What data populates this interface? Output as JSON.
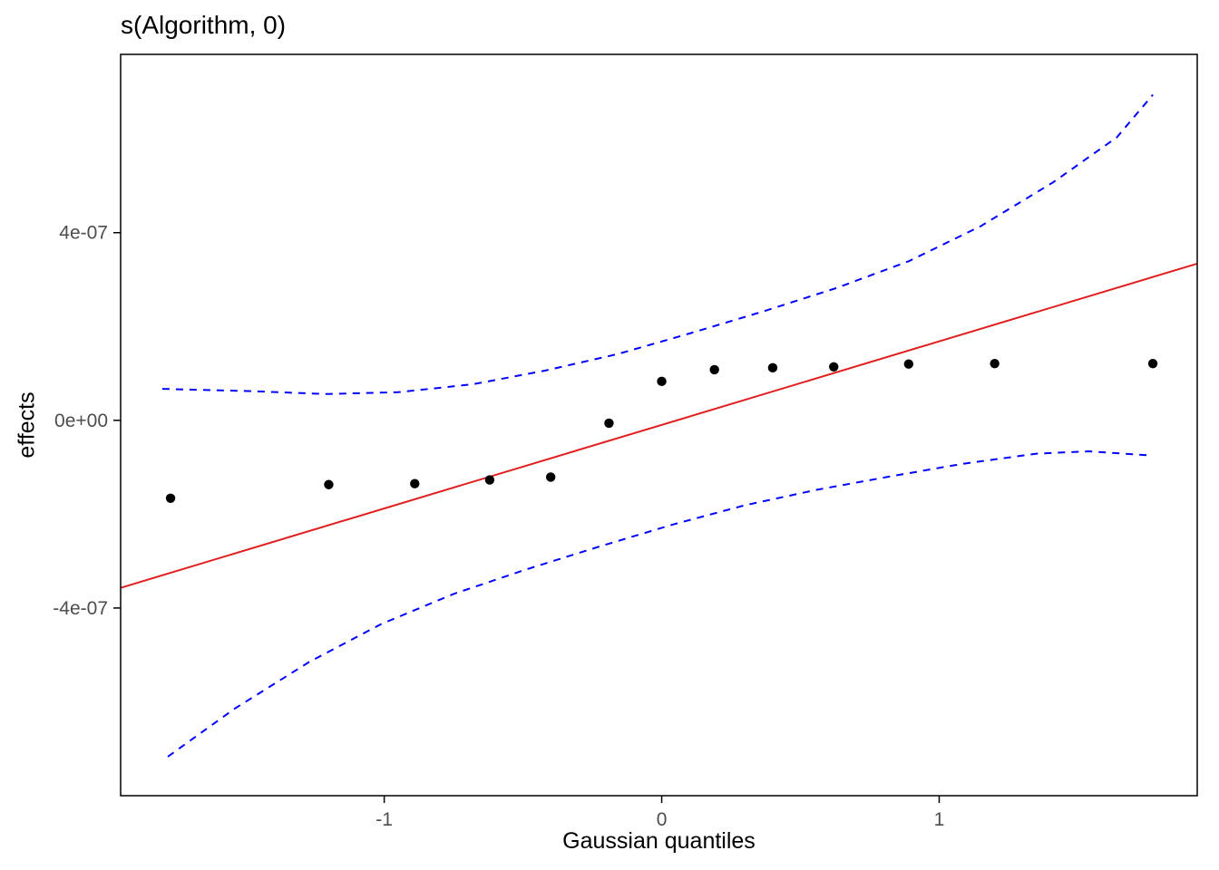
{
  "chart_data": {
    "type": "scatter",
    "title": "s(Algorithm, 0)",
    "xlabel": "Gaussian quantiles",
    "ylabel": "effects",
    "xlim": [
      -1.95,
      1.93
    ],
    "ylim": [
      -8e-07,
      7.8e-07
    ],
    "grid": false,
    "legend": "none",
    "x_ticks": [
      {
        "value": -1,
        "label": "-1"
      },
      {
        "value": 0,
        "label": "0"
      },
      {
        "value": 1,
        "label": "1"
      }
    ],
    "y_ticks": [
      {
        "value": -4e-07,
        "label": "-4e-07"
      },
      {
        "value": 0,
        "label": "0e+00"
      },
      {
        "value": 4e-07,
        "label": "4e-07"
      }
    ],
    "points": {
      "x": [
        -1.77,
        -1.2,
        -0.89,
        -0.62,
        -0.4,
        -0.19,
        0.0,
        0.19,
        0.4,
        0.62,
        0.89,
        1.2,
        1.77
      ],
      "y": [
        -1.66e-07,
        -1.37e-07,
        -1.35e-07,
        -1.27e-07,
        -1.21e-07,
        -6e-09,
        8.3e-08,
        1.08e-07,
        1.12e-07,
        1.14e-07,
        1.2e-07,
        1.21e-07,
        1.21e-07
      ]
    },
    "reference_line": {
      "x1": -1.95,
      "y1": -3.57e-07,
      "x2": 1.93,
      "y2": 3.34e-07
    },
    "upper_band": [
      [
        -1.8,
        6.7e-08
      ],
      [
        -1.47,
        6.2e-08
      ],
      [
        -1.21,
        5.6e-08
      ],
      [
        -0.95,
        6e-08
      ],
      [
        -0.68,
        7.7e-08
      ],
      [
        -0.42,
        1.06e-07
      ],
      [
        -0.16,
        1.41e-07
      ],
      [
        0.1,
        1.85e-07
      ],
      [
        0.36,
        2.31e-07
      ],
      [
        0.63,
        2.82e-07
      ],
      [
        0.89,
        3.39e-07
      ],
      [
        1.15,
        4.14e-07
      ],
      [
        1.41,
        5.07e-07
      ],
      [
        1.64,
        6.03e-07
      ],
      [
        1.77,
        6.94e-07
      ]
    ],
    "lower_band": [
      [
        -1.78,
        -7.17e-07
      ],
      [
        -1.54,
        -6.15e-07
      ],
      [
        -1.27,
        -5.15e-07
      ],
      [
        -1.01,
        -4.34e-07
      ],
      [
        -0.75,
        -3.7e-07
      ],
      [
        -0.49,
        -3.18e-07
      ],
      [
        -0.23,
        -2.7e-07
      ],
      [
        0.04,
        -2.22e-07
      ],
      [
        0.3,
        -1.81e-07
      ],
      [
        0.56,
        -1.48e-07
      ],
      [
        0.82,
        -1.2e-07
      ],
      [
        1.08,
        -9.3e-08
      ],
      [
        1.35,
        -7.1e-08
      ],
      [
        1.54,
        -6.6e-08
      ],
      [
        1.77,
        -7.5e-08
      ]
    ],
    "colors": {
      "point": "#000000",
      "line": "#E02020",
      "band": "#0000FF",
      "panel_border": "#000000",
      "tick_label": "#4D4D4D",
      "background": "#FFFFFF"
    }
  }
}
